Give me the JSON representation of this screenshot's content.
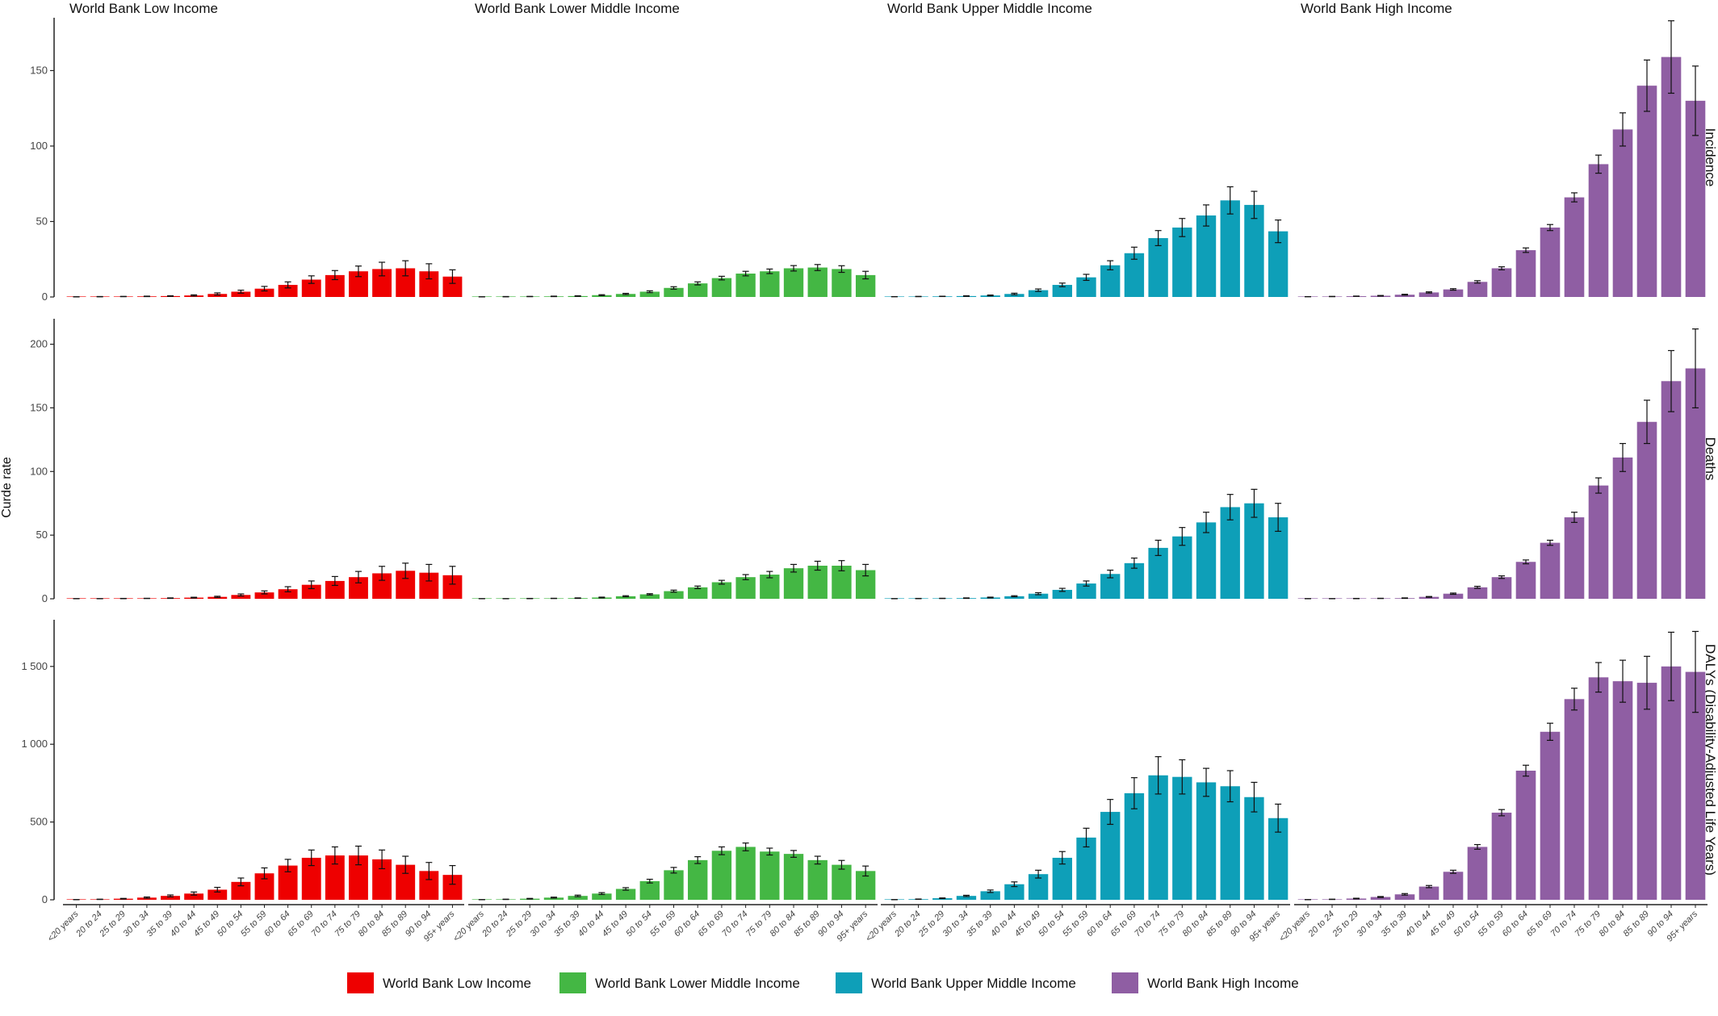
{
  "chart_data": {
    "type": "bar",
    "ylabel": "Curde rate",
    "legend_position": "bottom",
    "grid": false,
    "error_bars": true,
    "categories": [
      "<20 years",
      "20 to 24",
      "25 to 29",
      "30 to 34",
      "35 to 39",
      "40 to 44",
      "45 to 49",
      "50 to 54",
      "55 to 59",
      "60 to 64",
      "65 to 69",
      "70 to 74",
      "75 to 79",
      "80 to 84",
      "85 to 89",
      "90 to 94",
      "95+ years"
    ],
    "columns": [
      "World Bank Low Income",
      "World Bank Lower Middle Income",
      "World Bank Upper Middle Income",
      "World Bank High Income"
    ],
    "colors": [
      "#ee0000",
      "#44b744",
      "#0e9fb8",
      "#8f5ea3"
    ],
    "rows": [
      {
        "label": "Incidence",
        "ylim": [
          0,
          185
        ],
        "yticks": [
          {
            "v": 0,
            "label": "0"
          },
          {
            "v": 50,
            "label": "50"
          },
          {
            "v": 100,
            "label": "100"
          },
          {
            "v": 150,
            "label": "150"
          }
        ],
        "series": [
          {
            "name": "World Bank Low Income",
            "values": [
              0.1,
              0.2,
              0.3,
              0.4,
              0.6,
              1,
              2,
              3.5,
              5.5,
              8,
              11.5,
              14.5,
              17,
              18.5,
              19,
              17,
              13.5
            ],
            "err": [
              0.05,
              0.1,
              0.1,
              0.15,
              0.2,
              0.4,
              0.7,
              1,
              1.5,
              2,
              2.5,
              3,
              3.5,
              4.5,
              5,
              5,
              4.5
            ]
          },
          {
            "name": "World Bank Lower Middle Income",
            "values": [
              0.1,
              0.2,
              0.3,
              0.4,
              0.6,
              1.2,
              2,
              3.5,
              6,
              9,
              12.5,
              15.5,
              17,
              19,
              19.5,
              18.5,
              14.5
            ],
            "err": [
              0.05,
              0.1,
              0.1,
              0.15,
              0.2,
              0.3,
              0.4,
              0.6,
              0.8,
              1,
              1.2,
              1.5,
              1.5,
              1.8,
              2,
              2.2,
              2.5
            ]
          },
          {
            "name": "World Bank Upper Middle Income",
            "values": [
              0.2,
              0.3,
              0.4,
              0.6,
              1,
              2,
              4.5,
              8,
              13,
              21,
              29,
              39,
              46,
              54,
              64,
              61,
              43.5
            ],
            "err": [
              0.05,
              0.1,
              0.1,
              0.2,
              0.3,
              0.5,
              0.8,
              1.2,
              2,
              3,
              4,
              5,
              6,
              7,
              9,
              9,
              7.5
            ]
          },
          {
            "name": "World Bank High Income",
            "values": [
              0.2,
              0.3,
              0.5,
              0.8,
              1.5,
              3,
              5,
              10,
              19,
              31,
              46,
              66,
              88,
              111,
              140,
              159,
              130
            ],
            "err": [
              0.05,
              0.1,
              0.1,
              0.2,
              0.3,
              0.4,
              0.5,
              0.8,
              1,
              1.5,
              2,
              3,
              6,
              11,
              17,
              24,
              23
            ]
          }
        ]
      },
      {
        "label": "Deaths",
        "ylim": [
          0,
          220
        ],
        "yticks": [
          {
            "v": 0,
            "label": "0"
          },
          {
            "v": 50,
            "label": "50"
          },
          {
            "v": 100,
            "label": "100"
          },
          {
            "v": 150,
            "label": "150"
          },
          {
            "v": 200,
            "label": "200"
          }
        ],
        "series": [
          {
            "name": "World Bank Low Income",
            "values": [
              0.1,
              0.1,
              0.2,
              0.3,
              0.5,
              0.9,
              1.5,
              3,
              5,
              7.5,
              11,
              14,
              17,
              20,
              22,
              20.5,
              18.5
            ],
            "err": [
              0.05,
              0.05,
              0.1,
              0.1,
              0.2,
              0.3,
              0.5,
              0.8,
              1.2,
              2,
              3,
              3.5,
              4.5,
              5.5,
              6,
              6.5,
              7
            ]
          },
          {
            "name": "World Bank Lower Middle Income",
            "values": [
              0.1,
              0.1,
              0.2,
              0.3,
              0.5,
              1,
              2,
              3.5,
              6,
              9,
              13,
              17,
              19,
              24,
              26,
              26,
              22.5
            ],
            "err": [
              0.05,
              0.05,
              0.1,
              0.1,
              0.2,
              0.3,
              0.4,
              0.5,
              0.8,
              1,
              1.5,
              2,
              2.5,
              3,
              3.5,
              4,
              4.5
            ]
          },
          {
            "name": "World Bank Upper Middle Income",
            "values": [
              0.1,
              0.2,
              0.3,
              0.5,
              1,
              2,
              4,
              7,
              12,
              19.5,
              28,
              40,
              49,
              60,
              72,
              75,
              64
            ],
            "err": [
              0.05,
              0.1,
              0.1,
              0.2,
              0.3,
              0.4,
              0.8,
              1.2,
              2,
              3,
              4,
              6,
              7,
              8,
              10,
              11,
              11
            ]
          },
          {
            "name": "World Bank High Income",
            "values": [
              0.1,
              0.1,
              0.2,
              0.3,
              0.5,
              1.5,
              4,
              9,
              17,
              29,
              44,
              64,
              89,
              111,
              139,
              171,
              181
            ],
            "err": [
              0.05,
              0.05,
              0.1,
              0.1,
              0.2,
              0.3,
              0.5,
              0.8,
              1,
              1.5,
              2,
              4,
              6,
              11,
              17,
              24,
              31
            ]
          }
        ]
      },
      {
        "label": "DALYs (Disability-Adjusted Life Years)",
        "ylim": [
          0,
          1800
        ],
        "yticks": [
          {
            "v": 0,
            "label": "0"
          },
          {
            "v": 500,
            "label": "500"
          },
          {
            "v": 1000,
            "label": "1 000"
          },
          {
            "v": 1500,
            "label": "1 500"
          }
        ],
        "series": [
          {
            "name": "World Bank Low Income",
            "values": [
              1,
              3,
              7,
              14,
              25,
              40,
              65,
              115,
              170,
              220,
              270,
              285,
              285,
              260,
              225,
              185,
              160
            ],
            "err": [
              0.5,
              1,
              2,
              4,
              6,
              10,
              15,
              25,
              35,
              40,
              50,
              55,
              60,
              60,
              55,
              55,
              60
            ]
          },
          {
            "name": "World Bank Lower Middle Income",
            "values": [
              1,
              3,
              7,
              14,
              25,
              40,
              70,
              120,
              190,
              255,
              315,
              340,
              310,
              295,
              255,
              225,
              185
            ],
            "err": [
              0.5,
              1,
              2,
              3,
              5,
              6,
              8,
              12,
              18,
              22,
              25,
              25,
              22,
              22,
              25,
              28,
              32
            ]
          },
          {
            "name": "World Bank Upper Middle Income",
            "values": [
              1,
              4,
              10,
              25,
              55,
              100,
              165,
              270,
              400,
              565,
              685,
              800,
              790,
              755,
              730,
              660,
              525
            ],
            "err": [
              0.5,
              1,
              2,
              4,
              8,
              15,
              25,
              40,
              60,
              80,
              100,
              120,
              110,
              90,
              100,
              95,
              90
            ]
          },
          {
            "name": "World Bank High Income",
            "values": [
              1,
              3,
              8,
              18,
              35,
              85,
              180,
              340,
              560,
              830,
              1080,
              1290,
              1430,
              1405,
              1395,
              1500,
              1465
            ],
            "err": [
              0.5,
              1,
              2,
              3,
              5,
              7,
              10,
              15,
              20,
              35,
              55,
              70,
              95,
              135,
              170,
              220,
              260
            ]
          }
        ]
      }
    ]
  }
}
